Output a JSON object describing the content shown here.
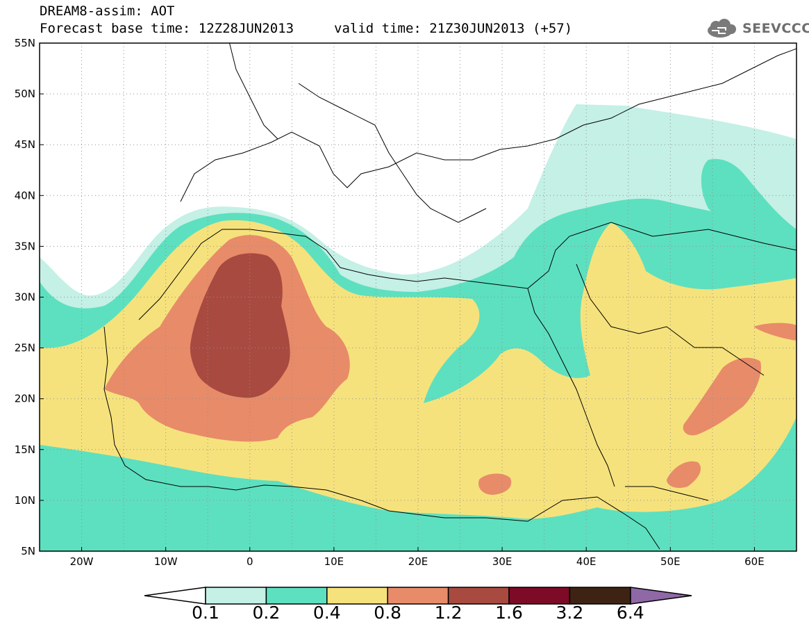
{
  "header": {
    "line1": "DREAM8-assim: AOT",
    "line2": "Forecast base time: 12Z28JUN2013",
    "line3": "valid time: 21Z30JUN2013 (+57)",
    "logo_text": "SEEVCCC"
  },
  "map": {
    "variable": "AOT",
    "lon_range": [
      -25,
      65
    ],
    "lat_range": [
      5,
      55
    ],
    "lat_ticks": [
      "55N",
      "50N",
      "45N",
      "40N",
      "35N",
      "30N",
      "25N",
      "20N",
      "15N",
      "10N",
      "5N"
    ],
    "lon_ticks": [
      "20W",
      "10W",
      "0",
      "10E",
      "20E",
      "30E",
      "40E",
      "50E",
      "60E"
    ],
    "grid": "dotted",
    "features": [
      "coastlines",
      "country borders"
    ]
  },
  "legend": {
    "position": "bottom",
    "labels": [
      "0.1",
      "0.2",
      "0.4",
      "0.8",
      "1.2",
      "1.6",
      "3.2",
      "6.4"
    ],
    "colors": {
      "below_0_1": "#ffffff",
      "c0_1_0_2": "#c4f0e6",
      "c0_2_0_4": "#5de0bf",
      "c0_4_0_8": "#f6e27c",
      "c0_8_1_2": "#e88b69",
      "c1_2_1_6": "#a84a40",
      "c1_6_3_2": "#7d0a27",
      "c3_2_6_4": "#3e2314",
      "above_6_4": "#8f68a6"
    }
  }
}
